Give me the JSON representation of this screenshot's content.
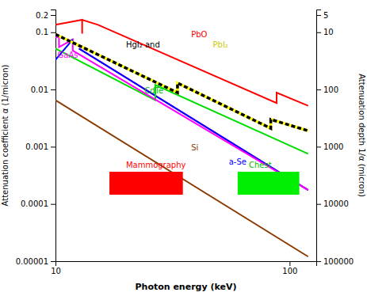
{
  "chart_data": {
    "type": "line",
    "log": true,
    "xlabel": "Photon energy (keV)",
    "ylabel": "Attenuation coefficient α (1/micron)",
    "y2label": "Attenuation depth 1/α (micron)",
    "xlim": [
      10,
      130
    ],
    "ylim": [
      1e-05,
      0.25
    ],
    "y2lim": [
      100000,
      4
    ],
    "xticks": [
      10,
      100
    ],
    "yticks": [
      1e-05,
      0.0001,
      0.001,
      0.01,
      0.1,
      0.2
    ],
    "y2ticks": [
      5,
      10,
      100,
      1000,
      10000,
      100000
    ],
    "series": [
      {
        "color": "#8B3A00",
        "x": [
          10,
          120
        ],
        "values": [
          0.0065,
          1.2e-05
        ]
      },
      {
        "color": "magenta",
        "x": [
          12.6,
          120
        ],
        "values": [
          0.052,
          0.000175
        ]
      },
      {
        "color": "blue",
        "x": [
          12.6,
          120
        ],
        "values": [
          0.052,
          0.000175
        ]
      },
      {
        "color": "#00dd00",
        "x": [
          10.0,
          26.7,
          26.7,
          120
        ],
        "values": [
          0.052,
          0.0065,
          0.012,
          0.00075
        ]
      },
      {
        "color": "magenta",
        "x": [
          10.0,
          10.35,
          10.35,
          11.85,
          11.85,
          120
        ],
        "values": [
          0.08,
          0.085,
          0.055,
          0.075,
          0.048,
          0.000175
        ]
      },
      {
        "color": "blue",
        "x": [
          10.0,
          11.85
        ],
        "values": [
          0.033,
          0.075
        ]
      },
      {
        "color": "yellow",
        "line_style": "dashed",
        "x": [
          10.0,
          33.2,
          33.2,
          83.1,
          83.1,
          120
        ],
        "values": [
          0.092,
          0.0088,
          0.013,
          0.0021,
          0.003,
          0.0019
        ]
      },
      {
        "color": "red",
        "x": [
          10.0,
          13.0,
          13.0,
          13.0,
          15.2,
          88.0,
          88.0,
          120
        ],
        "values": [
          0.135,
          0.165,
          0.095,
          0.165,
          0.135,
          0.0058,
          0.0088,
          0.0052
        ]
      },
      {
        "type": "area",
        "color": "red",
        "x": [
          17,
          35
        ],
        "values": [
          0.000365,
          0.000365
        ],
        "base": [
          0.000145,
          0.000145
        ]
      },
      {
        "type": "area",
        "color": "#00ee00",
        "x": [
          60,
          110
        ],
        "values": [
          0.000365,
          0.000365
        ],
        "base": [
          0.000145,
          0.000145
        ]
      }
    ],
    "annotations": [
      {
        "text": "PbO",
        "x": 38,
        "y": 0.083,
        "color": "red"
      },
      {
        "text": "HgI₂ and",
        "x": 20,
        "y": 0.054,
        "color": "black"
      },
      {
        "text": "PbI₂",
        "x": 47,
        "y": 0.054,
        "color": "#cccc00"
      },
      {
        "text": "GaAs",
        "x": 10.2,
        "y": 0.036,
        "color": "magenta"
      },
      {
        "text": "CdTe",
        "x": 24,
        "y": 0.0085,
        "color": "#00bb00"
      },
      {
        "text": "Si",
        "x": 38,
        "y": 0.00085,
        "color": "#8B3A00"
      },
      {
        "text": "a-Se",
        "x": 55,
        "y": 0.00048,
        "color": "blue"
      },
      {
        "text": "Mammography",
        "x": 20,
        "y": 0.000435,
        "color": "red"
      },
      {
        "text": "Chest",
        "x": 67,
        "y": 0.000435,
        "color": "#00bb00"
      }
    ]
  }
}
